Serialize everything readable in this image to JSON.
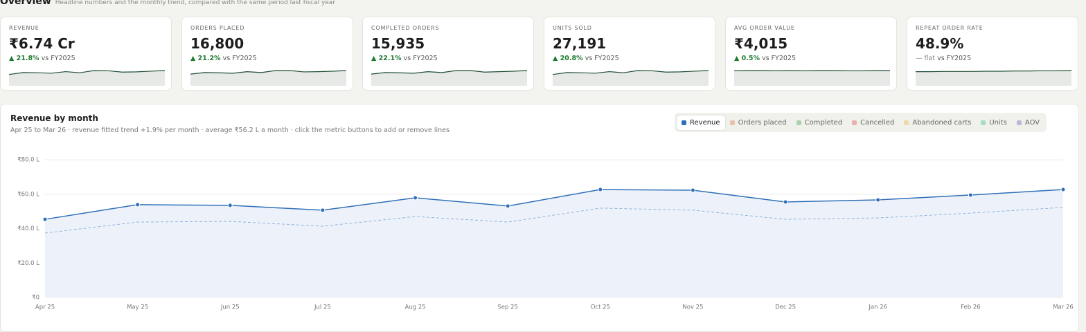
{
  "header": {
    "title": "Overview",
    "subtitle": "Headline numbers and the monthly trend, compared with the same period last fiscal year"
  },
  "kpis": [
    {
      "label": "REVENUE",
      "value": "₹6.74 Cr",
      "delta": "▲ 21.8%",
      "comparison": "vs FY2025",
      "trend": [
        45,
        54,
        53,
        51,
        58,
        53,
        63,
        62,
        56,
        57,
        60,
        63
      ]
    },
    {
      "label": "ORDERS PLACED",
      "value": "16,800",
      "delta": "▲ 21.2%",
      "comparison": "vs FY2025",
      "trend": [
        46,
        53,
        52,
        50,
        57,
        53,
        62,
        62,
        56,
        57,
        59,
        62
      ]
    },
    {
      "label": "COMPLETED ORDERS",
      "value": "15,935",
      "delta": "▲ 22.1%",
      "comparison": "vs FY2025",
      "trend": [
        46,
        53,
        52,
        50,
        57,
        53,
        62,
        62,
        55,
        57,
        59,
        62
      ]
    },
    {
      "label": "UNITS SOLD",
      "value": "27,191",
      "delta": "▲ 20.8%",
      "comparison": "vs FY2025",
      "trend": [
        45,
        54,
        53,
        51,
        58,
        53,
        63,
        62,
        56,
        57,
        60,
        63
      ]
    },
    {
      "label": "AVG ORDER VALUE",
      "value": "₹4,015",
      "delta": "▲ 0.5%",
      "comparison": "vs FY2025",
      "trend": [
        60,
        61,
        61,
        60,
        61,
        60,
        61,
        61,
        60,
        60,
        61,
        61
      ]
    },
    {
      "label": "REPEAT ORDER RATE",
      "value": "48.9%",
      "delta": "— flat",
      "comparison": "vs FY2025",
      "trend": [
        56,
        56,
        57,
        57,
        57,
        58,
        58,
        59,
        59,
        60,
        60,
        61
      ]
    }
  ],
  "chart_data": {
    "type": "line",
    "title": "Revenue by month",
    "subtitle": "Apr 25 to Mar 26 · revenue fitted trend +1.9% per month · average ₹56.2 L a month · click the metric buttons to add or remove lines",
    "legend": [
      {
        "name": "Revenue",
        "color": "#2f6fb8",
        "active": true
      },
      {
        "name": "Orders placed",
        "color": "#e8c2a6",
        "active": false
      },
      {
        "name": "Completed",
        "color": "#a9d3ae",
        "active": false
      },
      {
        "name": "Cancelled",
        "color": "#eab0b0",
        "active": false
      },
      {
        "name": "Abandoned carts",
        "color": "#eed8aa",
        "active": false
      },
      {
        "name": "Units",
        "color": "#a6dcc0",
        "active": false
      },
      {
        "name": "AOV",
        "color": "#b9b9dc",
        "active": false
      }
    ],
    "categories": [
      "Apr 25",
      "May 25",
      "Jun 25",
      "Jul 25",
      "Aug 25",
      "Sep 25",
      "Oct 25",
      "Nov 25",
      "Dec 25",
      "Jan 26",
      "Feb 26",
      "Mar 26"
    ],
    "series": [
      {
        "color": "#2f6fb8",
        "area": true,
        "values": [
          45.4,
          53.9,
          53.5,
          50.7,
          57.9,
          53.1,
          62.7,
          62.3,
          55.5,
          56.7,
          59.5,
          62.7
        ]
      },
      {
        "color": "#8fb3dd",
        "dashed": true,
        "values": [
          37.4,
          43.8,
          44.2,
          41.4,
          47.0,
          43.8,
          51.9,
          50.7,
          45.4,
          46.2,
          49.0,
          52.3
        ]
      }
    ],
    "ylim": [
      0,
      80
    ],
    "yticks": [
      {
        "value": 0,
        "label": "₹0"
      },
      {
        "value": 20,
        "label": "₹20.0 L"
      },
      {
        "value": 40,
        "label": "₹40.0 L"
      },
      {
        "value": 60,
        "label": "₹60.0 L"
      },
      {
        "value": 80,
        "label": "₹80.0 L"
      }
    ],
    "grid": true
  }
}
